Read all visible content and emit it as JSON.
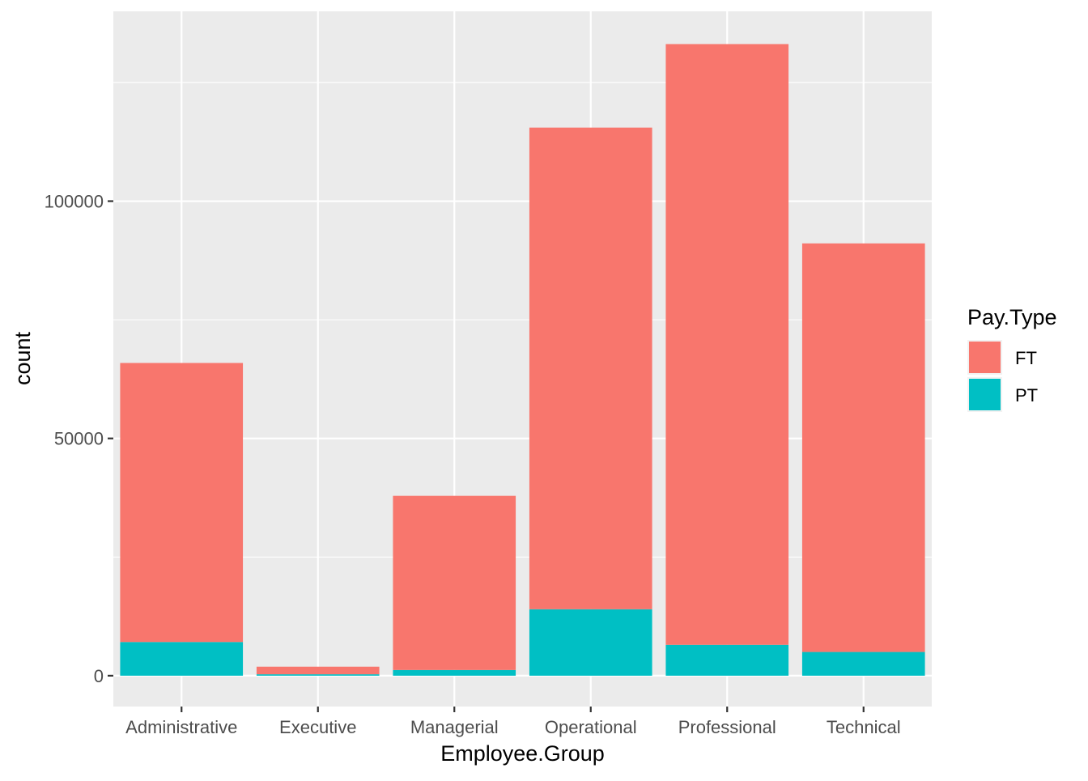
{
  "chart_data": {
    "type": "bar",
    "stacked": true,
    "title": "",
    "xlabel": "Employee.Group",
    "ylabel": "count",
    "categories": [
      "Administrative",
      "Executive",
      "Managerial",
      "Operational",
      "Professional",
      "Technical"
    ],
    "series": [
      {
        "name": "PT",
        "color": "#00BFC4",
        "values": [
          7100,
          300,
          1200,
          14000,
          6500,
          5000
        ]
      },
      {
        "name": "FT",
        "color": "#F8766D",
        "values": [
          58800,
          1600,
          36700,
          101500,
          126600,
          86100
        ]
      }
    ],
    "ylim": [
      -6500,
      140000
    ],
    "yticks": [
      0,
      50000,
      100000
    ],
    "yticks_minor": [
      25000,
      75000,
      125000
    ],
    "grid": true,
    "panel_background": "#EBEBEB",
    "grid_color": "#FFFFFF",
    "legend": {
      "title": "Pay.Type",
      "placement": "right",
      "entries": [
        {
          "label": "FT",
          "color": "#F8766D"
        },
        {
          "label": "PT",
          "color": "#00BFC4"
        }
      ]
    }
  }
}
